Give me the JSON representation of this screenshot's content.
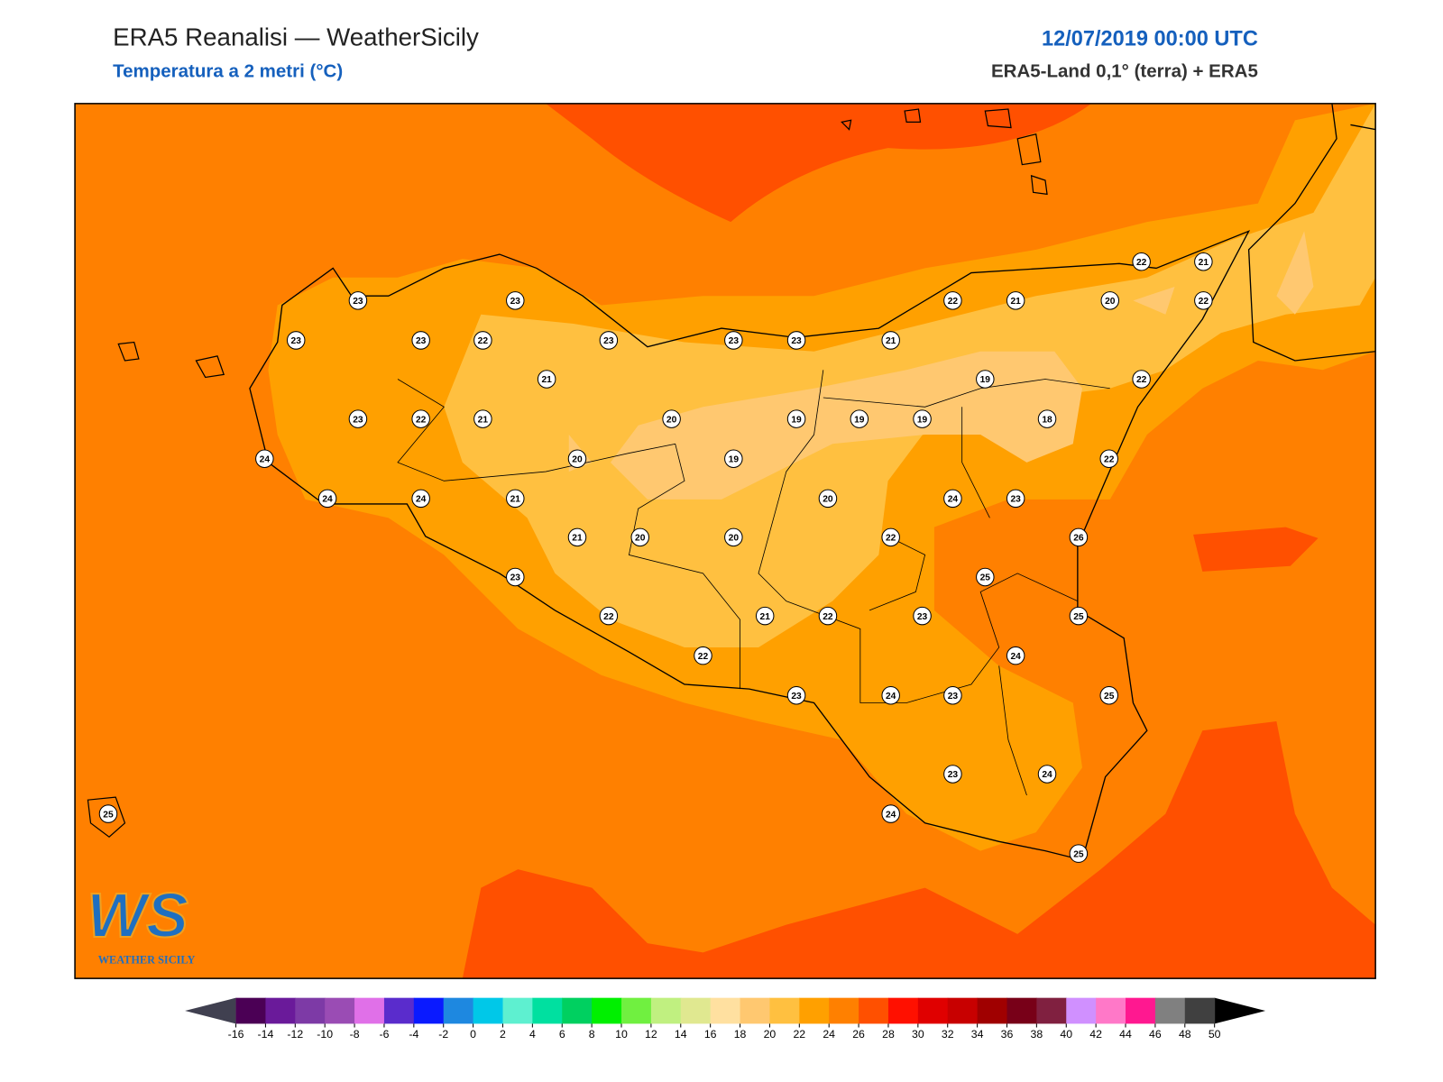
{
  "header": {
    "title": "ERA5 Reanalisi — WeatherSicily",
    "subtitle": "Temperatura a 2 metri (°C)",
    "datetime": "12/07/2019 00:00 UTC",
    "source": "ERA5-Land 0,1° (terra) + ERA5"
  },
  "logo": {
    "mark": "WS",
    "name": "WEATHER SICILY"
  },
  "stations": [
    23,
    23,
    22,
    21,
    20,
    22,
    22,
    21,
    23,
    23,
    22,
    23,
    23,
    23,
    21,
    21,
    19,
    22,
    23,
    22,
    21,
    20,
    19,
    19,
    19,
    18,
    24,
    20,
    19,
    22,
    24,
    24,
    21,
    20,
    24,
    23,
    21,
    20,
    20,
    22,
    26,
    23,
    25,
    22,
    21,
    22,
    23,
    25,
    22,
    24,
    23,
    24,
    23,
    25,
    23,
    24,
    25,
    24,
    25
  ],
  "colorbar": {
    "ticks": [
      -16,
      -14,
      -12,
      -10,
      -8,
      -6,
      -4,
      -2,
      0,
      2,
      4,
      6,
      8,
      10,
      12,
      14,
      16,
      18,
      20,
      22,
      24,
      26,
      28,
      30,
      32,
      34,
      36,
      38,
      40,
      42,
      44,
      46,
      48,
      50
    ],
    "colors": [
      "#4b0055",
      "#6a1a9a",
      "#7d3aa6",
      "#9a4cb4",
      "#e070e8",
      "#5a2ccc",
      "#0a1aff",
      "#1e88e0",
      "#00c8e8",
      "#5ef0d0",
      "#00e0a0",
      "#00d060",
      "#00f000",
      "#70f040",
      "#c0f080",
      "#e0e890",
      "#ffe0a0",
      "#ffc870",
      "#ffc040",
      "#ffa000",
      "#ff8000",
      "#ff5000",
      "#ff1000",
      "#e00000",
      "#c80000",
      "#a00000",
      "#780018",
      "#802040",
      "#d090ff",
      "#ff78c8",
      "#ff1890",
      "#808080",
      "#404040"
    ],
    "under_color": "#404050",
    "over_color": "#000000"
  }
}
